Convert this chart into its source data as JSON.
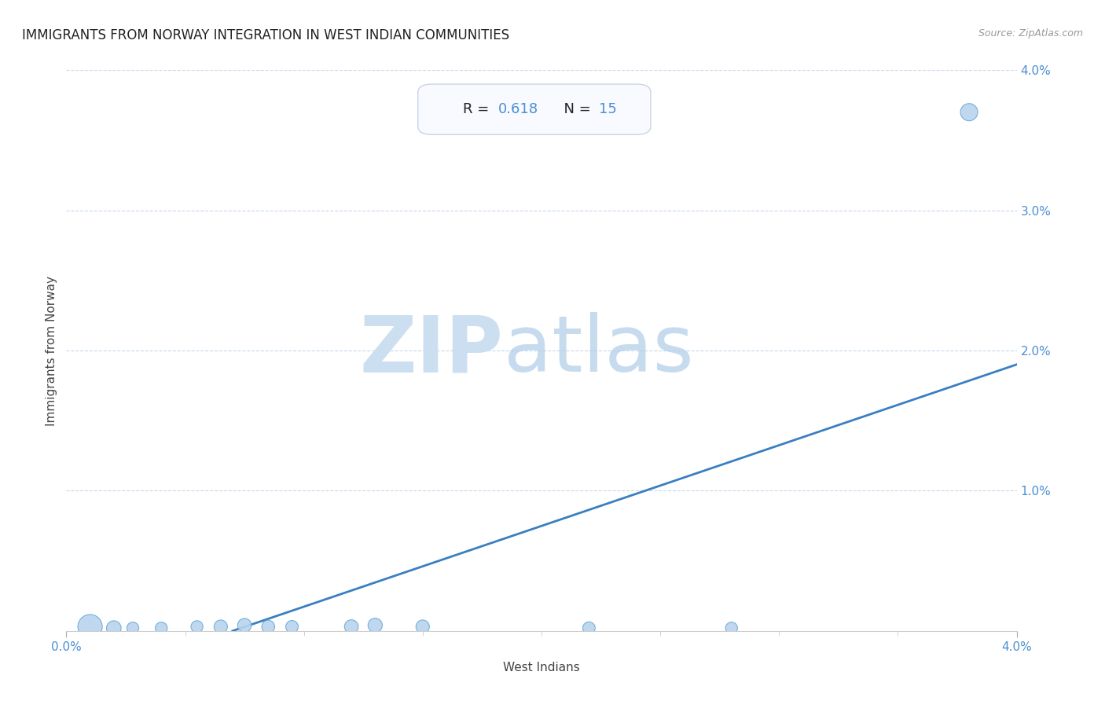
{
  "title": "IMMIGRANTS FROM NORWAY INTEGRATION IN WEST INDIAN COMMUNITIES",
  "source": "Source: ZipAtlas.com",
  "xlabel": "West Indians",
  "ylabel": "Immigrants from Norway",
  "R": 0.618,
  "N": 15,
  "xlim": [
    0.0,
    0.04
  ],
  "ylim": [
    0.0,
    0.04
  ],
  "yticks": [
    0.0,
    0.01,
    0.02,
    0.03,
    0.04
  ],
  "ytick_labels": [
    "",
    "1.0%",
    "2.0%",
    "3.0%",
    "4.0%"
  ],
  "xtick_labels": [
    "0.0%",
    "4.0%"
  ],
  "scatter_x": [
    0.001,
    0.002,
    0.0028,
    0.004,
    0.0055,
    0.0065,
    0.0075,
    0.0085,
    0.0095,
    0.012,
    0.013,
    0.015,
    0.022,
    0.028,
    0.038
  ],
  "scatter_y": [
    0.0003,
    0.0002,
    0.0002,
    0.0002,
    0.0003,
    0.0003,
    0.0004,
    0.0003,
    0.0003,
    0.0003,
    0.0004,
    0.0003,
    0.0002,
    0.0002,
    0.037
  ],
  "scatter_sizes": [
    500,
    180,
    120,
    120,
    120,
    150,
    160,
    140,
    130,
    160,
    170,
    150,
    130,
    120,
    250
  ],
  "scatter_color": "#b8d4ee",
  "scatter_edge_color": "#6aaad4",
  "regression_x0": 0.007,
  "regression_y0": 0.0,
  "regression_x1": 0.04,
  "regression_y1": 0.019,
  "regression_color": "#3a7fc1",
  "grid_color": "#c8d8ec",
  "background_color": "#ffffff",
  "title_fontsize": 12,
  "axis_label_fontsize": 11,
  "tick_label_color": "#4a8fd4",
  "annotation_box_facecolor": "#f8faff",
  "annotation_box_edgecolor": "#c8d4e8",
  "minor_xticks": [
    0.005,
    0.01,
    0.015,
    0.02,
    0.025,
    0.03,
    0.035
  ]
}
